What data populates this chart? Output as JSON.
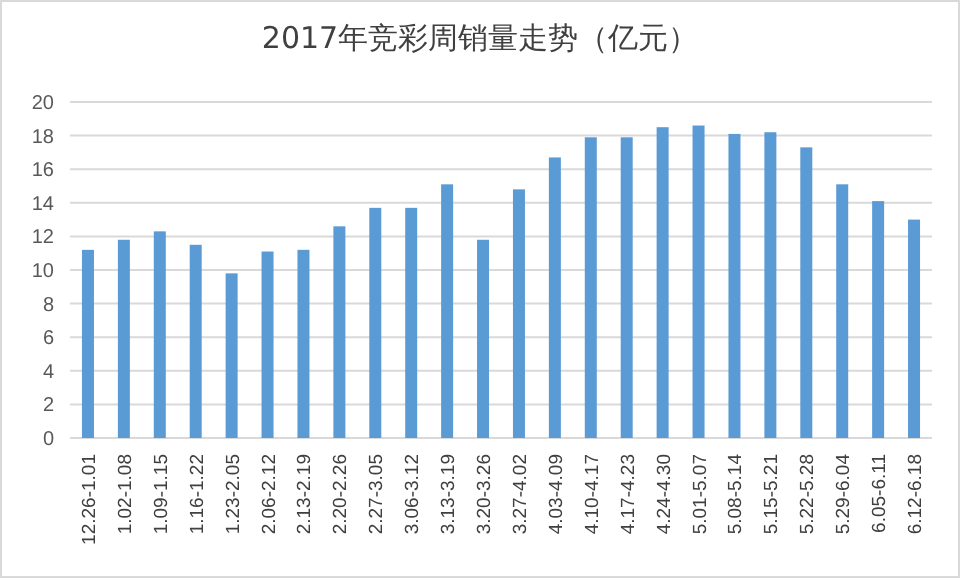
{
  "chart_data": {
    "type": "bar",
    "title": "2017年竞彩周销量走势（亿元）",
    "categories": [
      "12.26-1.01",
      "1.02-1.08",
      "1.09-1.15",
      "1.16-1.22",
      "1.23-2.05",
      "2.06-2.12",
      "2.13-2.19",
      "2.20-2.26",
      "2.27-3.05",
      "3.06-3.12",
      "3.13-3.19",
      "3.20-3.26",
      "3.27-4.02",
      "4.03-4.09",
      "4.10-4.17",
      "4.17-4.23",
      "4.24-4.30",
      "5.01-5.07",
      "5.08-5.14",
      "5.15-5.21",
      "5.22-5.28",
      "5.29-6.04",
      "6.05-6.11",
      "6.12-6.18"
    ],
    "values": [
      11.2,
      11.8,
      12.3,
      11.5,
      9.8,
      11.1,
      11.2,
      12.6,
      13.7,
      13.7,
      15.1,
      11.8,
      14.8,
      16.7,
      17.9,
      17.9,
      18.5,
      18.6,
      18.1,
      18.2,
      17.3,
      15.1,
      14.1,
      13.0
    ],
    "color": "#5b9bd5",
    "ylim": [
      0,
      20
    ],
    "yticks": [
      0,
      2,
      4,
      6,
      8,
      10,
      12,
      14,
      16,
      18,
      20
    ],
    "grid": "y"
  }
}
